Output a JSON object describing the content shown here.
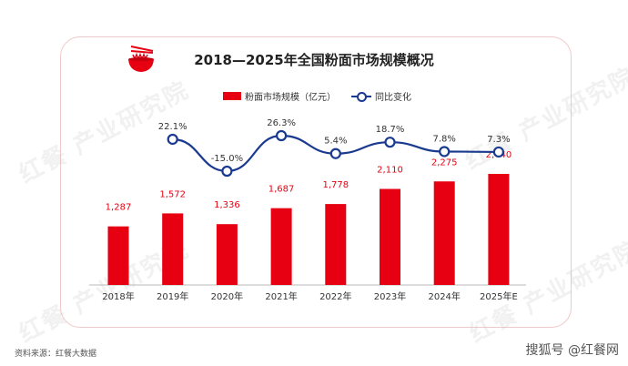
{
  "title": "2018—2025年全国粉面市场规模概况",
  "legend": {
    "bar_label": "粉面市场规模（亿元）",
    "line_label": "同比变化"
  },
  "source": "资料来源：红餐大数据",
  "brand": "搜狐号 @红餐网",
  "watermark": "红餐 产业研究院",
  "colors": {
    "bar": "#e60012",
    "line": "#1a3a8f",
    "bar_label": "#e60012",
    "text": "#333333"
  },
  "chart_data": {
    "type": "bar",
    "categories": [
      "2018年",
      "2019年",
      "2020年",
      "2021年",
      "2022年",
      "2023年",
      "2024年",
      "2025年E"
    ],
    "series": [
      {
        "name": "粉面市场规模（亿元）",
        "type": "bar",
        "values": [
          1287,
          1572,
          1336,
          1687,
          1778,
          2110,
          2275,
          2440
        ],
        "labels": [
          "1,287",
          "1,572",
          "1,336",
          "1,687",
          "1,778",
          "2,110",
          "2,275",
          "2,440"
        ]
      },
      {
        "name": "同比变化",
        "type": "line",
        "values": [
          null,
          22.1,
          -15.0,
          26.3,
          5.4,
          18.7,
          7.8,
          7.3
        ],
        "labels": [
          "",
          "22.1%",
          "-15.0%",
          "26.3%",
          "5.4%",
          "18.7%",
          "7.8%",
          "7.3%"
        ]
      }
    ],
    "legend_position": "top-center",
    "grid": false
  }
}
